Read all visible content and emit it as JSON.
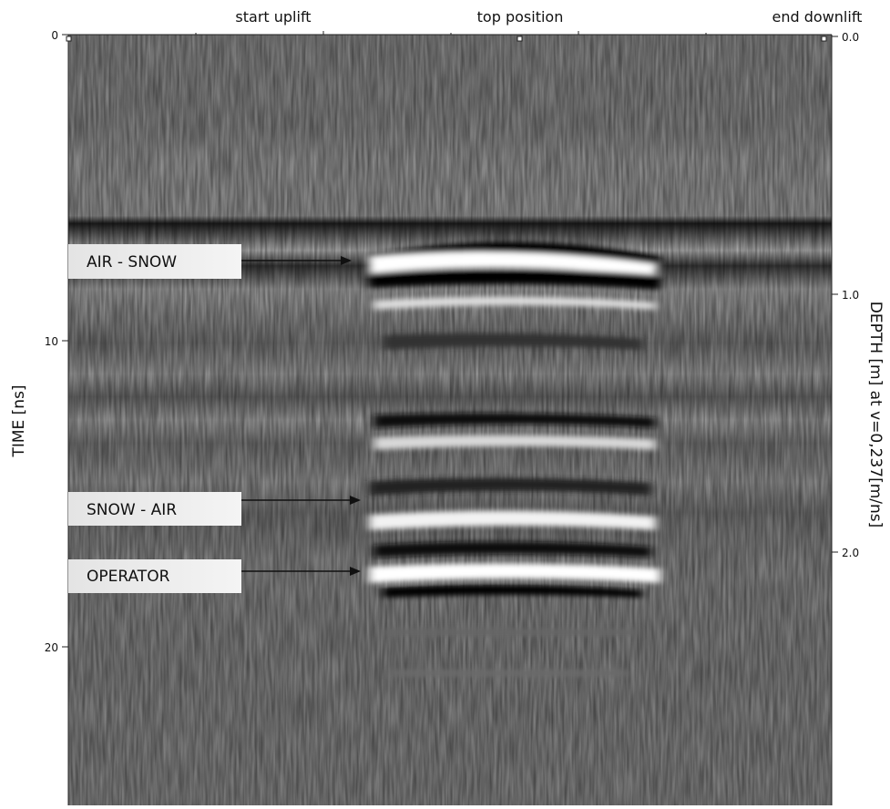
{
  "header": {
    "markers": [
      "start uplift",
      "top position",
      "end downlift"
    ]
  },
  "time_axis": {
    "label": "TIME [ns]",
    "ticks": [
      "0",
      "10",
      "20"
    ]
  },
  "depth_axis": {
    "label": "DEPTH [m] at v=0,237[m/ns]",
    "ticks": [
      "0.0",
      "1.0",
      "2.0"
    ]
  },
  "annotations": [
    "AIR - SNOW",
    "SNOW - AIR",
    "OPERATOR"
  ]
}
